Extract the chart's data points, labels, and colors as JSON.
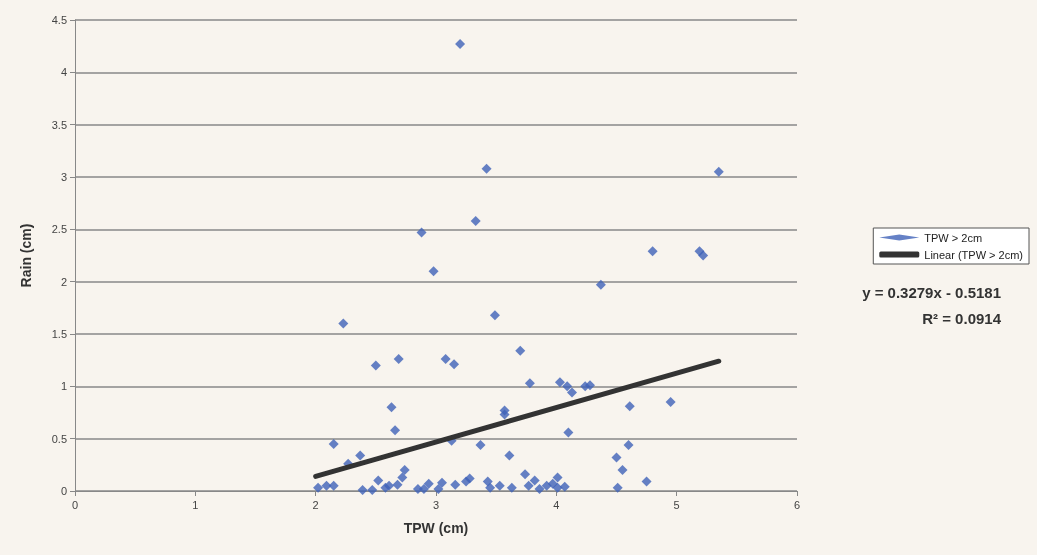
{
  "chart_data": {
    "type": "scatter",
    "xlabel": "TPW (cm)",
    "ylabel": "Rain (cm)",
    "xlim": [
      0,
      6
    ],
    "xticks": [
      0,
      1,
      2,
      3,
      4,
      5,
      6
    ],
    "ylim": [
      0,
      4.5
    ],
    "yticks": [
      0,
      0.5,
      1,
      1.5,
      2,
      2.5,
      3,
      3.5,
      4,
      4.5
    ],
    "grid": "y",
    "legend": "right",
    "marker": "diamond",
    "annotations": [
      "y = 0.3279x - 0.5181",
      "R² = 0.0914"
    ],
    "series": [
      {
        "name": "TPW > 2cm",
        "color": "#3f62b8",
        "x": [
          2.02,
          2.09,
          2.15,
          2.15,
          2.23,
          2.27,
          2.37,
          2.39,
          2.47,
          2.5,
          2.52,
          2.58,
          2.61,
          2.63,
          2.66,
          2.68,
          2.69,
          2.72,
          2.74,
          2.85,
          2.88,
          2.9,
          2.94,
          2.98,
          3.02,
          3.05,
          3.08,
          3.13,
          3.15,
          3.16,
          3.2,
          3.25,
          3.28,
          3.33,
          3.37,
          3.42,
          3.43,
          3.45,
          3.49,
          3.53,
          3.57,
          3.57,
          3.61,
          3.63,
          3.7,
          3.74,
          3.77,
          3.78,
          3.82,
          3.86,
          3.92,
          3.97,
          4.01,
          4.01,
          4.03,
          4.07,
          4.09,
          4.1,
          4.13,
          4.24,
          4.28,
          4.37,
          4.5,
          4.51,
          4.55,
          4.6,
          4.61,
          4.75,
          4.8,
          4.95,
          5.19,
          5.22,
          5.35
        ],
        "values": [
          0.03,
          0.05,
          0.05,
          0.45,
          1.6,
          0.26,
          0.34,
          0.01,
          0.01,
          1.2,
          0.1,
          0.03,
          0.05,
          0.8,
          0.58,
          0.06,
          1.26,
          0.13,
          0.2,
          0.02,
          2.47,
          0.02,
          0.07,
          2.1,
          0.02,
          0.08,
          1.26,
          0.48,
          1.21,
          0.06,
          4.27,
          0.09,
          0.12,
          2.58,
          0.44,
          3.08,
          0.09,
          0.03,
          1.68,
          0.05,
          0.77,
          0.73,
          0.34,
          0.03,
          1.34,
          0.16,
          0.05,
          1.03,
          0.1,
          0.02,
          0.05,
          0.07,
          0.13,
          0.03,
          1.04,
          0.04,
          1.0,
          0.56,
          0.94,
          1.0,
          1.01,
          1.97,
          0.32,
          0.03,
          0.2,
          0.44,
          0.81,
          0.09,
          2.29,
          0.85,
          2.29,
          2.25,
          3.05
        ]
      },
      {
        "name": "Linear (TPW > 2cm)",
        "type": "line",
        "marker": "none",
        "color": "#333333",
        "x": [
          2.0,
          5.35
        ],
        "values": [
          0.14,
          1.24
        ]
      }
    ]
  }
}
